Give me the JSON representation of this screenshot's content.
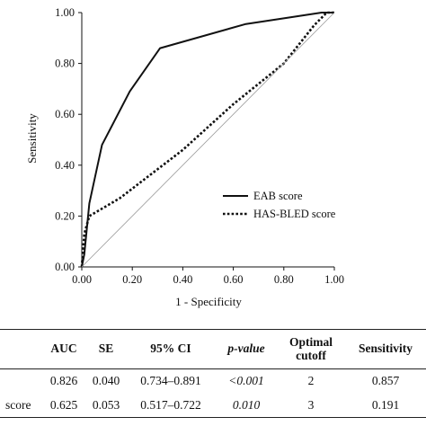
{
  "chart_data": {
    "type": "line",
    "title": "",
    "xlabel": "1 - Specificity",
    "ylabel": "Sensitivity",
    "xlim": [
      0,
      1
    ],
    "ylim": [
      0,
      1
    ],
    "xticks": [
      "0.00",
      "0.20",
      "0.40",
      "0.60",
      "0.80",
      "1.00"
    ],
    "yticks": [
      "0.00",
      "0.20",
      "0.40",
      "0.60",
      "0.80",
      "1.00"
    ],
    "grid": false,
    "legend_position": "lower-right",
    "series": [
      {
        "name": "EAB score",
        "style": "solid",
        "color": "#111111",
        "points": [
          [
            0,
            0
          ],
          [
            0.01,
            0.05
          ],
          [
            0.03,
            0.25
          ],
          [
            0.08,
            0.48
          ],
          [
            0.19,
            0.69
          ],
          [
            0.31,
            0.86
          ],
          [
            0.65,
            0.955
          ],
          [
            0.95,
            1.0
          ],
          [
            1.0,
            1.0
          ]
        ]
      },
      {
        "name": "HAS-BLED score",
        "style": "dotted",
        "color": "#111111",
        "points": [
          [
            0,
            0
          ],
          [
            0.01,
            0.13
          ],
          [
            0.03,
            0.2
          ],
          [
            0.15,
            0.27
          ],
          [
            0.4,
            0.46
          ],
          [
            0.6,
            0.64
          ],
          [
            0.8,
            0.8
          ],
          [
            0.92,
            0.95
          ],
          [
            0.97,
            1.0
          ],
          [
            1.0,
            1.0
          ]
        ]
      },
      {
        "name": "",
        "style": "reference",
        "color": "#999999",
        "points": [
          [
            0,
            0
          ],
          [
            1,
            1
          ]
        ]
      }
    ]
  },
  "table": {
    "headers": [
      "",
      "AUC",
      "SE",
      "95% CI",
      "p-value",
      "Optimal cutoff",
      "Sensitivity"
    ],
    "rows": [
      {
        "label": "",
        "auc": "0.826",
        "se": "0.040",
        "ci": "0.734–0.891",
        "p": "<0.001",
        "cutoff": "2",
        "sensitivity": "0.857"
      },
      {
        "label": "score",
        "auc": "0.625",
        "se": "0.053",
        "ci": "0.517–0.722",
        "p": "0.010",
        "cutoff": "3",
        "sensitivity": "0.191"
      }
    ]
  }
}
